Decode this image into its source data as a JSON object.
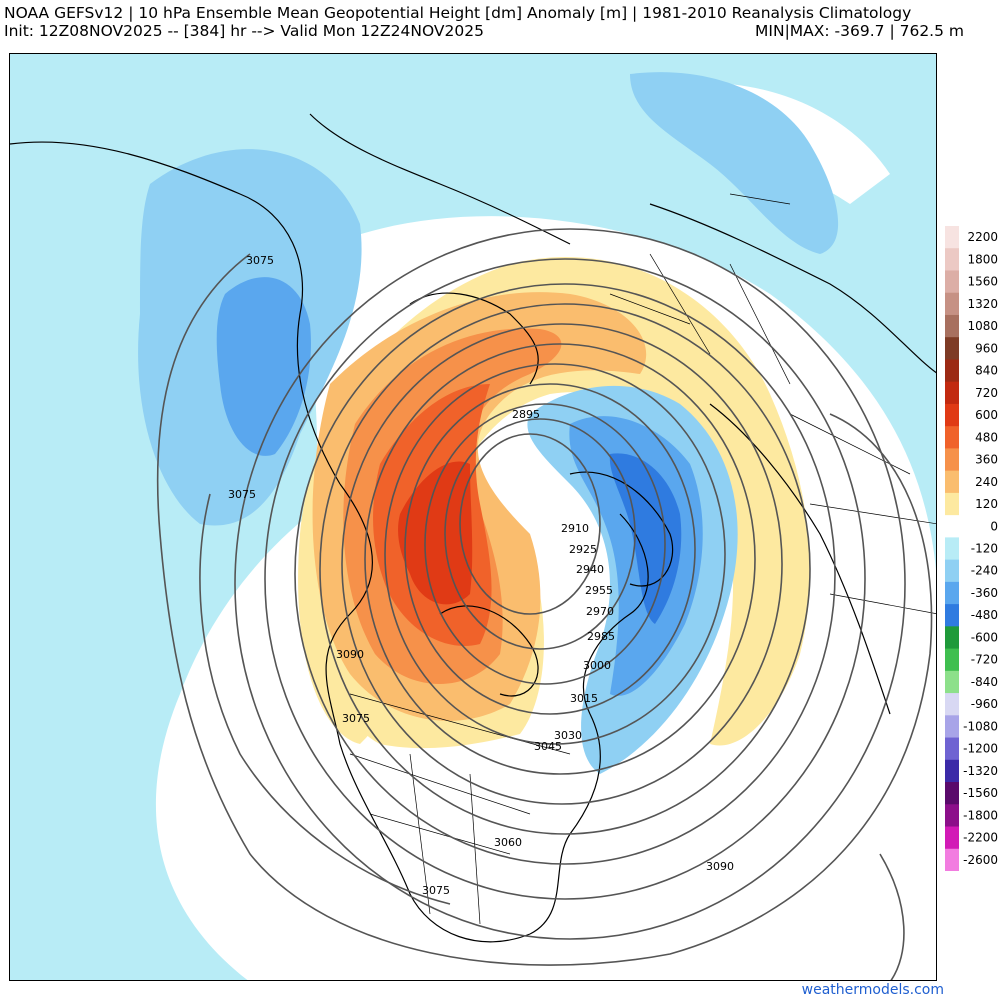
{
  "header": {
    "title": "NOAA GEFSv12 | 10 hPa Ensemble Mean Geopotential Height [dm] Anomaly [m] | 1981-2010 Reanalysis Climatology",
    "init_line": "Init: 12Z08NOV2025 -- [384] hr --> Valid Mon 12Z24NOV2025",
    "minmax": "MIN|MAX: -369.7 | 762.5 m"
  },
  "colorbar": {
    "levels": [
      {
        "label": "2200",
        "color": "#f7e3e1"
      },
      {
        "label": "1800",
        "color": "#ecc9c4"
      },
      {
        "label": "1560",
        "color": "#dcaea6"
      },
      {
        "label": "1320",
        "color": "#c69184"
      },
      {
        "label": "1080",
        "color": "#a8705f"
      },
      {
        "label": "960",
        "color": "#7e3b25"
      },
      {
        "label": "840",
        "color": "#9c2a14"
      },
      {
        "label": "720",
        "color": "#c22a10"
      },
      {
        "label": "600",
        "color": "#e03a15"
      },
      {
        "label": "480",
        "color": "#f0622a"
      },
      {
        "label": "360",
        "color": "#f6914a"
      },
      {
        "label": "240",
        "color": "#fabd6e"
      },
      {
        "label": "120",
        "color": "#fde9a0"
      },
      {
        "label": "0",
        "color": "#ffffff"
      },
      {
        "label": "-120",
        "color": "#b8ecf6"
      },
      {
        "label": "-240",
        "color": "#8fd0f3"
      },
      {
        "label": "-360",
        "color": "#5aa7ee"
      },
      {
        "label": "-480",
        "color": "#2f7be0"
      },
      {
        "label": "-600",
        "color": "#1f9a3a"
      },
      {
        "label": "-720",
        "color": "#3fbf4f"
      },
      {
        "label": "-840",
        "color": "#8de08a"
      },
      {
        "label": "-960",
        "color": "#d8d8f3"
      },
      {
        "label": "-1080",
        "color": "#a8a4e8"
      },
      {
        "label": "-1200",
        "color": "#6f63d2"
      },
      {
        "label": "-1320",
        "color": "#3b2aa8"
      },
      {
        "label": "-1560",
        "color": "#5a0a6b"
      },
      {
        "label": "-1800",
        "color": "#8c0f8a"
      },
      {
        "label": "-2200",
        "color": "#d21ab6"
      },
      {
        "label": "-2600",
        "color": "#f27ce0"
      }
    ]
  },
  "contours": {
    "labels": [
      "3075",
      "3075",
      "3090",
      "3075",
      "2895",
      "2910",
      "2925",
      "2940",
      "2955",
      "2970",
      "2985",
      "3000",
      "3015",
      "3030",
      "3045",
      "3060",
      "3075",
      "3090"
    ]
  },
  "credit": "weathermodels.com"
}
